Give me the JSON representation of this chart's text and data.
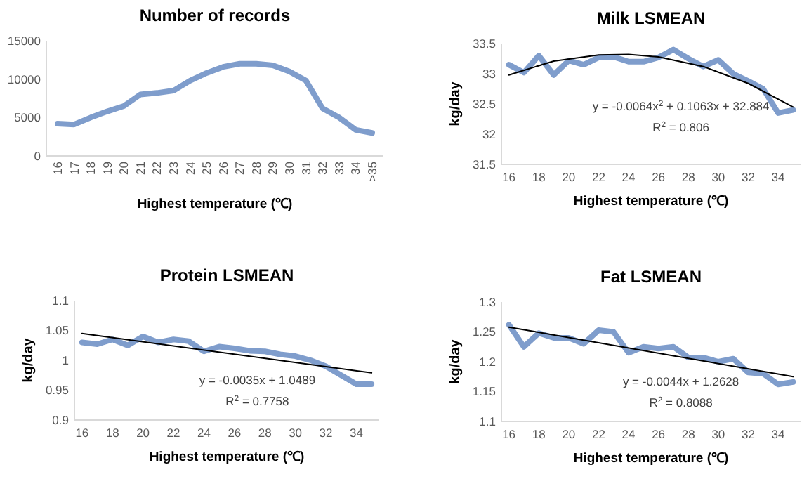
{
  "chart_data": [
    {
      "type": "line",
      "title": "Number of records",
      "xlabel": "Highest temperature (℃)",
      "categories": [
        "16",
        "17",
        "18",
        "19",
        "20",
        "21",
        "22",
        "23",
        "24",
        "25",
        "26",
        "27",
        "28",
        "29",
        "30",
        "31",
        "32",
        "33",
        "34",
        ">35"
      ],
      "series": [
        {
          "color": "#7f9dcc",
          "values": [
            4200,
            4100,
            5000,
            5800,
            6500,
            8000,
            8200,
            8500,
            9800,
            10800,
            11600,
            12000,
            12000,
            11800,
            11000,
            9800,
            6200,
            5000,
            3400,
            3000
          ]
        }
      ],
      "ylim": [
        0,
        15000
      ],
      "yticks": [
        0,
        5000,
        10000,
        15000
      ],
      "grid": false,
      "marker": "none",
      "line_style": "solid"
    },
    {
      "type": "line",
      "title": "Milk LSMEAN",
      "xlabel": "Highest temperature (℃)",
      "ylabel": "kg/day",
      "x": [
        16,
        17,
        18,
        19,
        20,
        21,
        22,
        23,
        24,
        25,
        26,
        27,
        28,
        29,
        30,
        31,
        32,
        33,
        34,
        35
      ],
      "series": [
        {
          "color": "#7f9dcc",
          "values": [
            33.15,
            33.02,
            33.3,
            32.98,
            33.22,
            33.15,
            33.27,
            33.28,
            33.2,
            33.2,
            33.27,
            33.4,
            33.25,
            33.12,
            33.23,
            33.0,
            32.88,
            32.75,
            32.35,
            32.4
          ]
        },
        {
          "type": "line",
          "color": "#000000",
          "x": [
            16,
            19,
            22,
            24,
            26,
            29,
            32,
            35
          ],
          "values": [
            32.98,
            33.21,
            33.31,
            33.32,
            33.28,
            33.12,
            32.84,
            32.45
          ]
        }
      ],
      "xlim": [
        15.5,
        35.5
      ],
      "xticks": [
        16,
        18,
        20,
        22,
        24,
        26,
        28,
        30,
        32,
        34
      ],
      "ylim": [
        31.5,
        33.5
      ],
      "yticks": [
        31.5,
        32,
        32.5,
        33,
        33.5
      ],
      "grid": false,
      "marker": "none",
      "line_style": "solid",
      "annotations": [
        "y = -0.0064x$^{2}$ + 0.1063x + 32.884",
        "R$^{2}$ = 0.806"
      ]
    },
    {
      "type": "line",
      "title": "Protein LSMEAN",
      "xlabel": "Highest temperature (℃)",
      "ylabel": "kg/day",
      "x": [
        16,
        17,
        18,
        19,
        20,
        21,
        22,
        23,
        24,
        25,
        26,
        27,
        28,
        29,
        30,
        31,
        32,
        33,
        34,
        35
      ],
      "series": [
        {
          "color": "#7f9dcc",
          "values": [
            1.03,
            1.027,
            1.035,
            1.025,
            1.04,
            1.03,
            1.035,
            1.032,
            1.015,
            1.023,
            1.02,
            1.016,
            1.015,
            1.01,
            1.007,
            1.0,
            0.99,
            0.975,
            0.96,
            0.96
          ]
        },
        {
          "type": "line",
          "color": "#000000",
          "x": [
            16,
            35
          ],
          "values": [
            1.045,
            0.979
          ]
        }
      ],
      "xlim": [
        15.5,
        35.5
      ],
      "xticks": [
        16,
        18,
        20,
        22,
        24,
        26,
        28,
        30,
        32,
        34
      ],
      "ylim": [
        0.9,
        1.1
      ],
      "yticks": [
        0.9,
        0.95,
        1,
        1.05,
        1.1
      ],
      "grid": false,
      "marker": "none",
      "line_style": "solid",
      "annotations": [
        "y = -0.0035x + 1.0489",
        "R$^{2}$ = 0.7758"
      ]
    },
    {
      "type": "line",
      "title": "Fat LSMEAN",
      "xlabel": "Highest temperature (℃)",
      "ylabel": "kg/day",
      "x": [
        16,
        17,
        18,
        19,
        20,
        21,
        22,
        23,
        24,
        25,
        26,
        27,
        28,
        29,
        30,
        31,
        32,
        33,
        34,
        35
      ],
      "series": [
        {
          "color": "#7f9dcc",
          "values": [
            1.262,
            1.225,
            1.248,
            1.24,
            1.24,
            1.23,
            1.253,
            1.25,
            1.215,
            1.225,
            1.222,
            1.225,
            1.207,
            1.207,
            1.2,
            1.205,
            1.182,
            1.18,
            1.162,
            1.166
          ]
        },
        {
          "type": "line",
          "color": "#000000",
          "x": [
            16,
            35
          ],
          "values": [
            1.258,
            1.175
          ]
        }
      ],
      "xlim": [
        15.5,
        35.5
      ],
      "xticks": [
        16,
        18,
        20,
        22,
        24,
        26,
        28,
        30,
        32,
        34
      ],
      "ylim": [
        1.1,
        1.3
      ],
      "yticks": [
        1.1,
        1.15,
        1.2,
        1.25,
        1.3
      ],
      "grid": false,
      "marker": "none",
      "line_style": "solid",
      "annotations": [
        "y = -0.0044x + 1.2628",
        "R$^{2}$ = 0.8088"
      ]
    }
  ]
}
